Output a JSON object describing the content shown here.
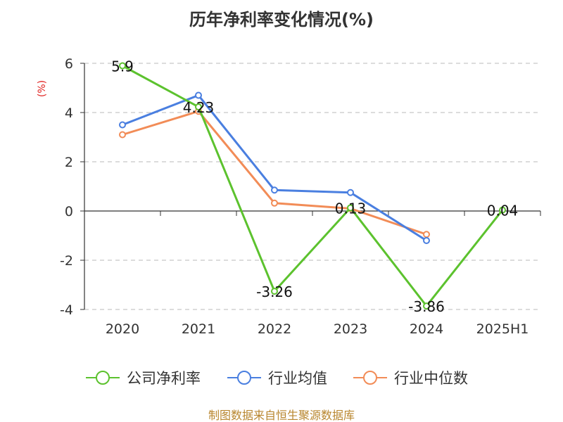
{
  "chart_data": {
    "type": "line",
    "title": "历年净利率变化情况(%)",
    "ylabel": "(%)",
    "categories": [
      "2020",
      "2021",
      "2022",
      "2023",
      "2024",
      "2025H1"
    ],
    "ylim": [
      -4,
      6
    ],
    "yticks": [
      -4,
      -2,
      0,
      2,
      4,
      6
    ],
    "grid": true,
    "legend_position": "bottom",
    "series": [
      {
        "name": "公司净利率",
        "color": "#5cc22e",
        "values": [
          5.9,
          4.23,
          -3.26,
          0.13,
          -3.86,
          0.04
        ],
        "labels": [
          "5.9",
          "4.23",
          "-3.26",
          "0.13",
          "-3.86",
          "0.04"
        ]
      },
      {
        "name": "行业均值",
        "color": "#4a7fe0",
        "values": [
          3.5,
          4.7,
          0.85,
          0.75,
          -1.2,
          null
        ]
      },
      {
        "name": "行业中位数",
        "color": "#f28c57",
        "values": [
          3.1,
          4.05,
          0.32,
          0.1,
          -0.95,
          null
        ]
      }
    ]
  },
  "source": "制图数据来自恒生聚源数据库"
}
